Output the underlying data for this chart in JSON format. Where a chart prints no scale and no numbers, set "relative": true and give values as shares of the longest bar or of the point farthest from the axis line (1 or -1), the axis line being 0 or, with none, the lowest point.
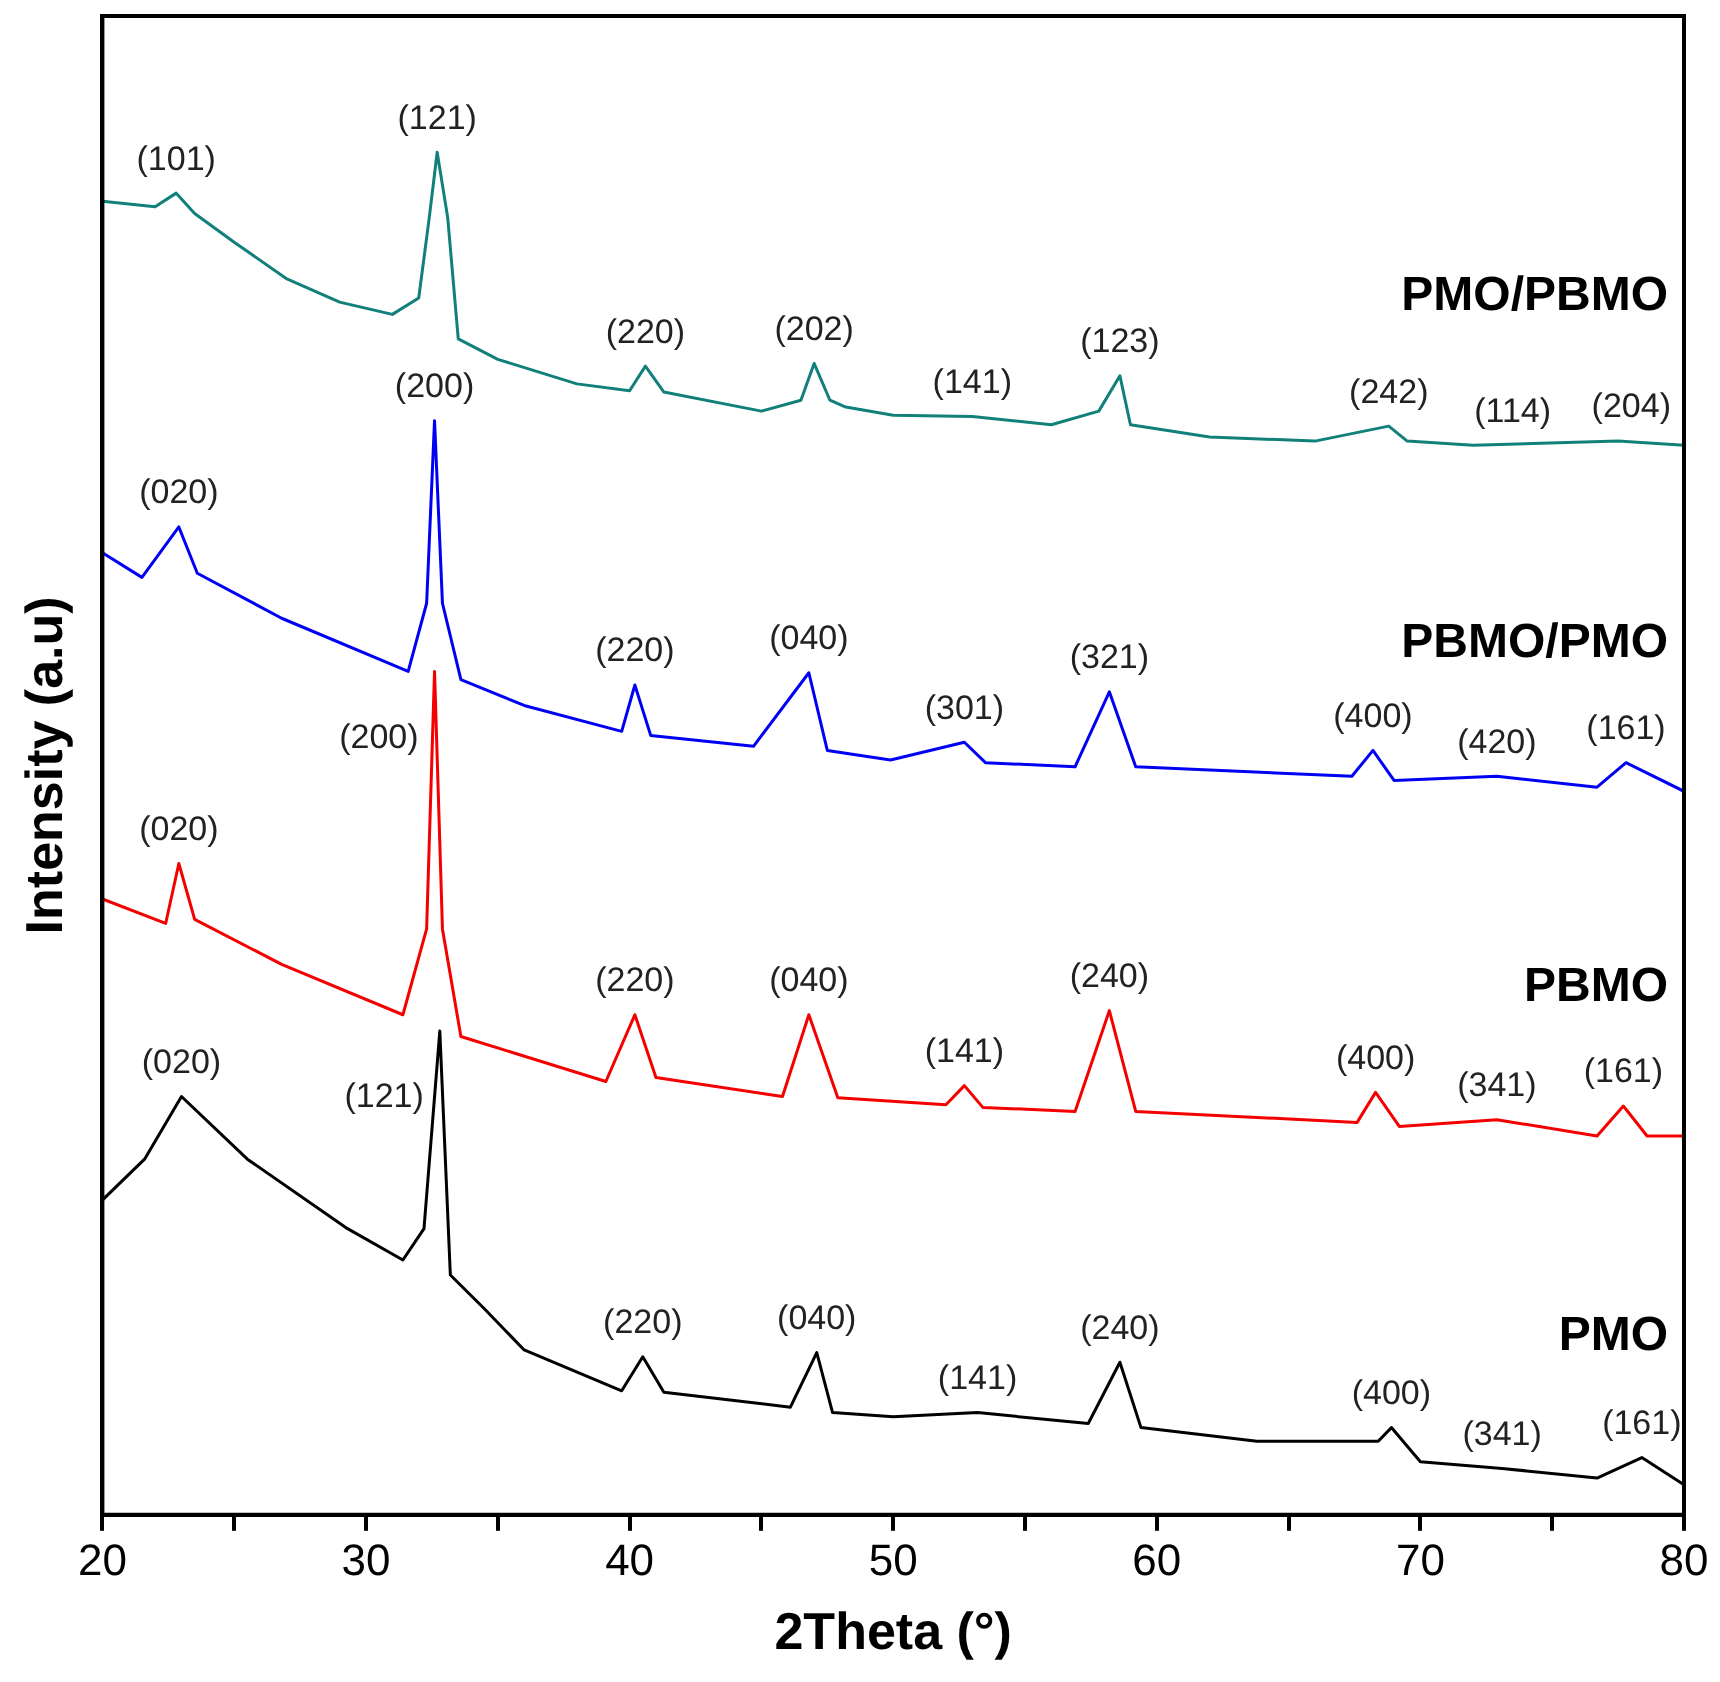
{
  "chart_data": {
    "type": "line",
    "relative": true,
    "xlabel": "2Theta (°)",
    "ylabel": "Intensity (a.u)",
    "xlim": [
      20,
      80
    ],
    "xticks": [
      20,
      {
        "value": 25,
        "label": null
      },
      30,
      {
        "value": 35,
        "label": null
      },
      40,
      {
        "value": 45,
        "label": null
      },
      50,
      {
        "value": 55,
        "label": null
      },
      60,
      {
        "value": 65,
        "label": null
      },
      70,
      {
        "value": 75,
        "label": null
      },
      80
    ],
    "series": [
      {
        "name": "PMO/PBMO",
        "color": "#11807a",
        "x": [
          20,
          22,
          22.8,
          23.5,
          25,
          27,
          29,
          31,
          32,
          32.4,
          32.7,
          33.1,
          33.5,
          35,
          38,
          40,
          40.6,
          41.3,
          45,
          46.5,
          47,
          47.6,
          48.2,
          50,
          53,
          56,
          57.8,
          58.6,
          59,
          62,
          66,
          68.8,
          69.5,
          72,
          77.5,
          80
        ],
        "values": [
          0.964,
          0.96,
          0.97,
          0.955,
          0.934,
          0.907,
          0.89,
          0.881,
          0.893,
          0.952,
          1.0,
          0.952,
          0.863,
          0.848,
          0.83,
          0.825,
          0.843,
          0.824,
          0.81,
          0.818,
          0.845,
          0.818,
          0.813,
          0.807,
          0.806,
          0.8,
          0.81,
          0.836,
          0.8,
          0.791,
          0.788,
          0.799,
          0.788,
          0.785,
          0.788,
          0.785
        ]
      },
      {
        "name": "PBMO/PMO",
        "color": "#0000f5",
        "x": [
          20,
          21.5,
          22.9,
          23.6,
          26.8,
          31.6,
          32.3,
          32.6,
          32.9,
          33.6,
          36,
          39.7,
          40.2,
          40.8,
          44.7,
          46.8,
          47.5,
          49.9,
          52.7,
          53.5,
          56.9,
          58.2,
          59.2,
          67.4,
          68.2,
          69,
          72.9,
          76.7,
          77.8,
          80
        ],
        "values": [
          0.706,
          0.688,
          0.725,
          0.691,
          0.658,
          0.619,
          0.669,
          0.803,
          0.669,
          0.613,
          0.594,
          0.575,
          0.609,
          0.572,
          0.564,
          0.618,
          0.561,
          0.554,
          0.567,
          0.552,
          0.549,
          0.604,
          0.549,
          0.542,
          0.561,
          0.539,
          0.542,
          0.534,
          0.552,
          0.531
        ]
      },
      {
        "name": "PBMO",
        "color": "#f50000",
        "x": [
          20,
          22.4,
          22.9,
          23.5,
          26.8,
          31.4,
          32.3,
          32.6,
          32.9,
          33.6,
          39.1,
          40.2,
          41,
          45.8,
          46.8,
          47.9,
          52,
          52.7,
          53.4,
          56.9,
          58.2,
          59.2,
          67.6,
          68.3,
          69.2,
          72.9,
          76.7,
          77.7,
          78.6,
          80
        ],
        "values": [
          0.452,
          0.434,
          0.478,
          0.437,
          0.404,
          0.367,
          0.43,
          0.619,
          0.43,
          0.351,
          0.318,
          0.367,
          0.321,
          0.307,
          0.367,
          0.306,
          0.301,
          0.315,
          0.299,
          0.296,
          0.37,
          0.296,
          0.288,
          0.31,
          0.285,
          0.29,
          0.278,
          0.3,
          0.278,
          0.278
        ]
      },
      {
        "name": "PMO",
        "color": "#000000",
        "x": [
          20,
          21.6,
          23,
          25.5,
          29.3,
          31.4,
          32.2,
          32.8,
          33.2,
          34.5,
          36,
          39.7,
          40.5,
          41.3,
          46.1,
          47.1,
          47.7,
          50,
          53.2,
          57.4,
          58.6,
          59.4,
          63.8,
          68.4,
          68.9,
          70,
          73.1,
          76.7,
          78.4,
          80
        ],
        "values": [
          0.231,
          0.261,
          0.307,
          0.261,
          0.21,
          0.187,
          0.21,
          0.355,
          0.176,
          0.151,
          0.121,
          0.091,
          0.116,
          0.09,
          0.079,
          0.119,
          0.075,
          0.072,
          0.075,
          0.067,
          0.112,
          0.064,
          0.054,
          0.054,
          0.064,
          0.039,
          0.034,
          0.027,
          0.042,
          0.022
        ]
      }
    ],
    "annotations": [
      {
        "text": "(101)",
        "x": 22.8,
        "y": 0.97
      },
      {
        "text": "(121)",
        "x": 32.7,
        "y": 1.0
      },
      {
        "text": "(220)",
        "x": 40.6,
        "y": 0.843
      },
      {
        "text": "(202)",
        "x": 47,
        "y": 0.845
      },
      {
        "text": "(141)",
        "x": 53,
        "y": 0.806
      },
      {
        "text": "(123)",
        "x": 58.6,
        "y": 0.836
      },
      {
        "text": "(242)",
        "x": 68.8,
        "y": 0.799
      },
      {
        "text": "(114)",
        "x": 73.5,
        "y": 0.785
      },
      {
        "text": "(204)",
        "x": 78,
        "y": 0.788
      },
      {
        "text": "(020)",
        "x": 22.9,
        "y": 0.725
      },
      {
        "text": "(200)",
        "x": 32.6,
        "y": 0.803
      },
      {
        "text": "(220)",
        "x": 40.2,
        "y": 0.609
      },
      {
        "text": "(040)",
        "x": 46.8,
        "y": 0.618
      },
      {
        "text": "(301)",
        "x": 52.7,
        "y": 0.567
      },
      {
        "text": "(321)",
        "x": 58.2,
        "y": 0.604
      },
      {
        "text": "(400)",
        "x": 68.2,
        "y": 0.561
      },
      {
        "text": "(420)",
        "x": 72.9,
        "y": 0.542
      },
      {
        "text": "(161)",
        "x": 77.8,
        "y": 0.552
      },
      {
        "text": "(020)",
        "x": 22.9,
        "y": 0.478
      },
      {
        "text": "(200)",
        "x": 32.6,
        "y": 0.619
      },
      {
        "text": "(220)",
        "x": 40.2,
        "y": 0.367
      },
      {
        "text": "(040)",
        "x": 46.8,
        "y": 0.367
      },
      {
        "text": "(141)",
        "x": 52.7,
        "y": 0.315
      },
      {
        "text": "(240)",
        "x": 58.2,
        "y": 0.37
      },
      {
        "text": "(400)",
        "x": 68.3,
        "y": 0.31
      },
      {
        "text": "(341)",
        "x": 72.9,
        "y": 0.29
      },
      {
        "text": "(161)",
        "x": 77.7,
        "y": 0.3
      },
      {
        "text": "(020)",
        "x": 23,
        "y": 0.307
      },
      {
        "text": "(121)",
        "x": 32.8,
        "y": 0.355
      },
      {
        "text": "(220)",
        "x": 40.5,
        "y": 0.116
      },
      {
        "text": "(040)",
        "x": 47.1,
        "y": 0.119
      },
      {
        "text": "(141)",
        "x": 53.2,
        "y": 0.075
      },
      {
        "text": "(240)",
        "x": 58.6,
        "y": 0.112
      },
      {
        "text": "(400)",
        "x": 68.9,
        "y": 0.064
      },
      {
        "text": "(341)",
        "x": 73.1,
        "y": 0.034
      },
      {
        "text": "(161)",
        "x": 78.4,
        "y": 0.042
      }
    ]
  }
}
